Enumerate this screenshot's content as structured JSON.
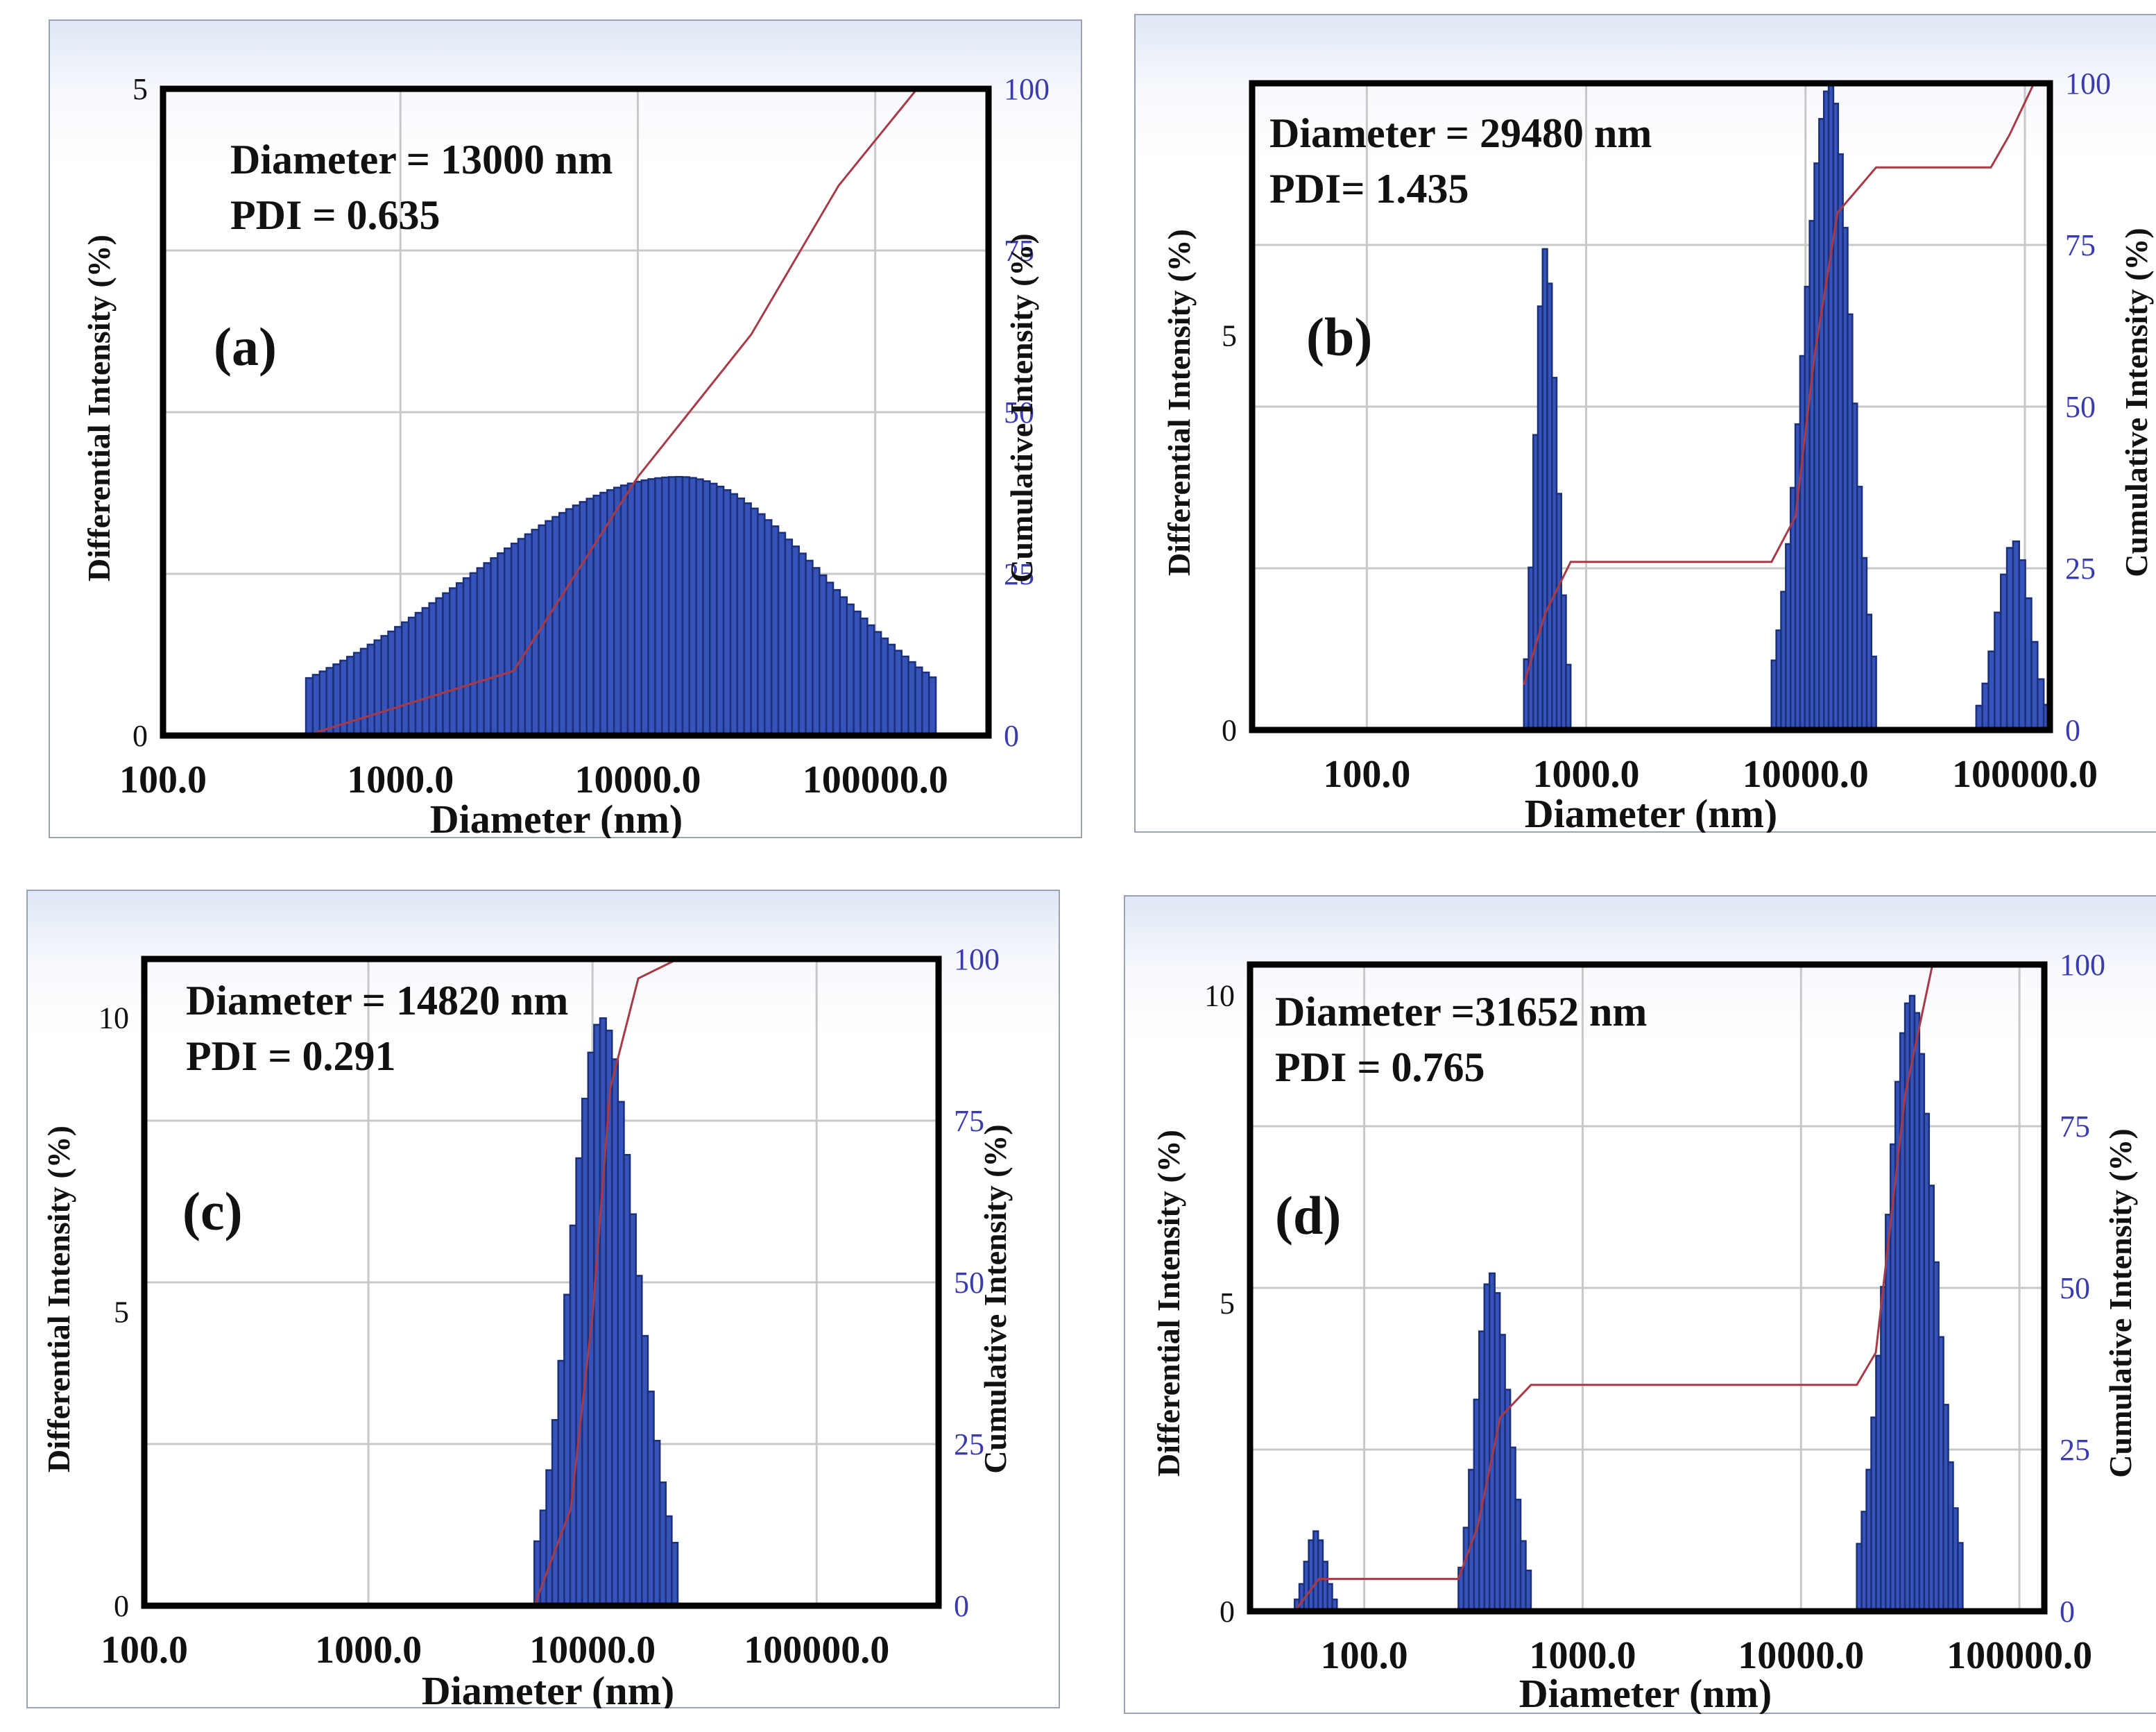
{
  "colors": {
    "bar": "#3553b8",
    "bar_edge": "#1b2f7a",
    "cumulative": "#a83a48",
    "grid": "#c8c8c8",
    "frame": "#000000",
    "right_axis": "#3b3bb0"
  },
  "chart_data": [
    {
      "id": "a",
      "type": "bar",
      "panel_label": "(a)",
      "info": [
        "Diameter = 13000 nm",
        "PDI = 0.635"
      ],
      "xlabel": "Diameter (nm)",
      "ylabel": "Differential Intensity (%)",
      "y2label": "Cumulative Intensity (%)",
      "x_scale": "log",
      "xlim": [
        100,
        300000
      ],
      "ylim": [
        0,
        5
      ],
      "y2lim": [
        0,
        100
      ],
      "xticks": [
        {
          "value": 100,
          "label": "100.0"
        },
        {
          "value": 1000,
          "label": "1000.0"
        },
        {
          "value": 10000,
          "label": "10000.0"
        },
        {
          "value": 100000,
          "label": "100000.0"
        }
      ],
      "yticks": [
        {
          "value": 0,
          "label": "0"
        },
        {
          "value": 5,
          "label": "5"
        }
      ],
      "y2ticks": [
        {
          "value": 0,
          "label": "0"
        },
        {
          "value": 25,
          "label": "25"
        },
        {
          "value": 50,
          "label": "50"
        },
        {
          "value": 75,
          "label": "75"
        },
        {
          "value": 100,
          "label": "100"
        }
      ],
      "distribution": {
        "kind": "broad",
        "from": 400,
        "to": 180000,
        "peak_x": 15000,
        "peak_y": 2.0,
        "edge_y": 0.28,
        "bins": 92
      },
      "cumulative": [
        [
          400,
          0
        ],
        [
          3000,
          10
        ],
        [
          10000,
          40
        ],
        [
          30000,
          62
        ],
        [
          70000,
          85
        ],
        [
          150000,
          100
        ],
        [
          300000,
          100
        ]
      ]
    },
    {
      "id": "b",
      "type": "bar",
      "panel_label": "(b)",
      "info": [
        "Diameter = 29480 nm",
        "PDI=  1.435"
      ],
      "xlabel": "Diameter (nm)",
      "ylabel": "Differential Intensity (%)",
      "y2label": "Cumulative Intensity (%)",
      "x_scale": "log",
      "xlim": [
        30,
        130000
      ],
      "ylim": [
        0,
        8.2
      ],
      "y2lim": [
        0,
        100
      ],
      "xticks": [
        {
          "value": 100,
          "label": "100.0"
        },
        {
          "value": 1000,
          "label": "1000.0"
        },
        {
          "value": 10000,
          "label": "10000.0"
        },
        {
          "value": 100000,
          "label": "100000.0"
        }
      ],
      "yticks": [
        {
          "value": 0,
          "label": "0"
        },
        {
          "value": 5,
          "label": "5"
        }
      ],
      "y2ticks": [
        {
          "value": 0,
          "label": "0"
        },
        {
          "value": 25,
          "label": "25"
        },
        {
          "value": 50,
          "label": "50"
        },
        {
          "value": 75,
          "label": "75"
        },
        {
          "value": 100,
          "label": "100"
        }
      ],
      "distribution": {
        "kind": "peaks",
        "peaks": [
          {
            "from": 520,
            "to": 850,
            "center": 650,
            "height": 6.1,
            "bins": 10
          },
          {
            "from": 7000,
            "to": 21000,
            "center": 13000,
            "height": 8.2,
            "bins": 22
          },
          {
            "from": 60000,
            "to": 130000,
            "center": 90000,
            "height": 2.4,
            "bins": 12
          }
        ]
      },
      "cumulative": [
        [
          520,
          7
        ],
        [
          650,
          18
        ],
        [
          850,
          26
        ],
        [
          7000,
          26
        ],
        [
          9000,
          33
        ],
        [
          11000,
          58
        ],
        [
          14000,
          80
        ],
        [
          21000,
          87
        ],
        [
          70000,
          87
        ],
        [
          85000,
          92
        ],
        [
          110000,
          100
        ],
        [
          130000,
          100
        ]
      ]
    },
    {
      "id": "c",
      "type": "bar",
      "panel_label": "(c)",
      "info": [
        "Diameter = 14820 nm",
        "PDI = 0.291"
      ],
      "xlabel": "Diameter (nm)",
      "ylabel": "Differential Intensity (%)",
      "y2label": "Cumulative Intensity (%)",
      "x_scale": "log",
      "xlim": [
        100,
        350000
      ],
      "ylim": [
        0,
        11
      ],
      "y2lim": [
        0,
        100
      ],
      "xticks": [
        {
          "value": 100,
          "label": "100.0"
        },
        {
          "value": 1000,
          "label": "1000.0"
        },
        {
          "value": 10000,
          "label": "10000.0"
        },
        {
          "value": 100000,
          "label": "100000.0"
        }
      ],
      "yticks": [
        {
          "value": 0,
          "label": "0"
        },
        {
          "value": 5,
          "label": "5"
        },
        {
          "value": 10,
          "label": "10"
        }
      ],
      "y2ticks": [
        {
          "value": 0,
          "label": "0"
        },
        {
          "value": 25,
          "label": "25"
        },
        {
          "value": 50,
          "label": "50"
        },
        {
          "value": 75,
          "label": "75"
        },
        {
          "value": 100,
          "label": "100"
        }
      ],
      "distribution": {
        "kind": "peaks",
        "peaks": [
          {
            "from": 5500,
            "to": 24000,
            "center": 11000,
            "height": 10.0,
            "bins": 24
          }
        ]
      },
      "cumulative": [
        [
          100,
          0
        ],
        [
          5500,
          0
        ],
        [
          8000,
          15
        ],
        [
          10000,
          45
        ],
        [
          12000,
          80
        ],
        [
          16000,
          97
        ],
        [
          24000,
          100
        ],
        [
          350000,
          100
        ]
      ]
    },
    {
      "id": "d",
      "type": "bar",
      "panel_label": "(d)",
      "info": [
        "Diameter =31652 nm",
        "PDI = 0.765"
      ],
      "xlabel": "Diameter (nm)",
      "ylabel": "Differential Intensity (%)",
      "y2label": "Cumulative Intensity (%)",
      "x_scale": "log",
      "xlim": [
        30,
        130000
      ],
      "ylim": [
        0,
        10.5
      ],
      "y2lim": [
        0,
        100
      ],
      "xticks": [
        {
          "value": 100,
          "label": "100.0"
        },
        {
          "value": 1000,
          "label": "1000.0"
        },
        {
          "value": 10000,
          "label": "10000.0"
        },
        {
          "value": 100000,
          "label": "100000.0"
        }
      ],
      "yticks": [
        {
          "value": 0,
          "label": "0"
        },
        {
          "value": 5,
          "label": "5"
        },
        {
          "value": 10,
          "label": "10"
        }
      ],
      "y2ticks": [
        {
          "value": 0,
          "label": "0"
        },
        {
          "value": 25,
          "label": "25"
        },
        {
          "value": 50,
          "label": "50"
        },
        {
          "value": 75,
          "label": "75"
        },
        {
          "value": 100,
          "label": "100"
        }
      ],
      "distribution": {
        "kind": "peaks",
        "peaks": [
          {
            "from": 48,
            "to": 75,
            "center": 60,
            "height": 1.3,
            "bins": 9
          },
          {
            "from": 270,
            "to": 580,
            "center": 380,
            "height": 5.5,
            "bins": 14
          },
          {
            "from": 18000,
            "to": 55000,
            "center": 32000,
            "height": 10.0,
            "bins": 22
          }
        ]
      },
      "cumulative": [
        [
          48,
          0
        ],
        [
          62,
          5
        ],
        [
          75,
          5
        ],
        [
          270,
          5
        ],
        [
          330,
          13
        ],
        [
          420,
          30
        ],
        [
          580,
          35
        ],
        [
          18000,
          35
        ],
        [
          22000,
          40
        ],
        [
          30000,
          80
        ],
        [
          40000,
          100
        ],
        [
          130000,
          100
        ]
      ]
    }
  ]
}
